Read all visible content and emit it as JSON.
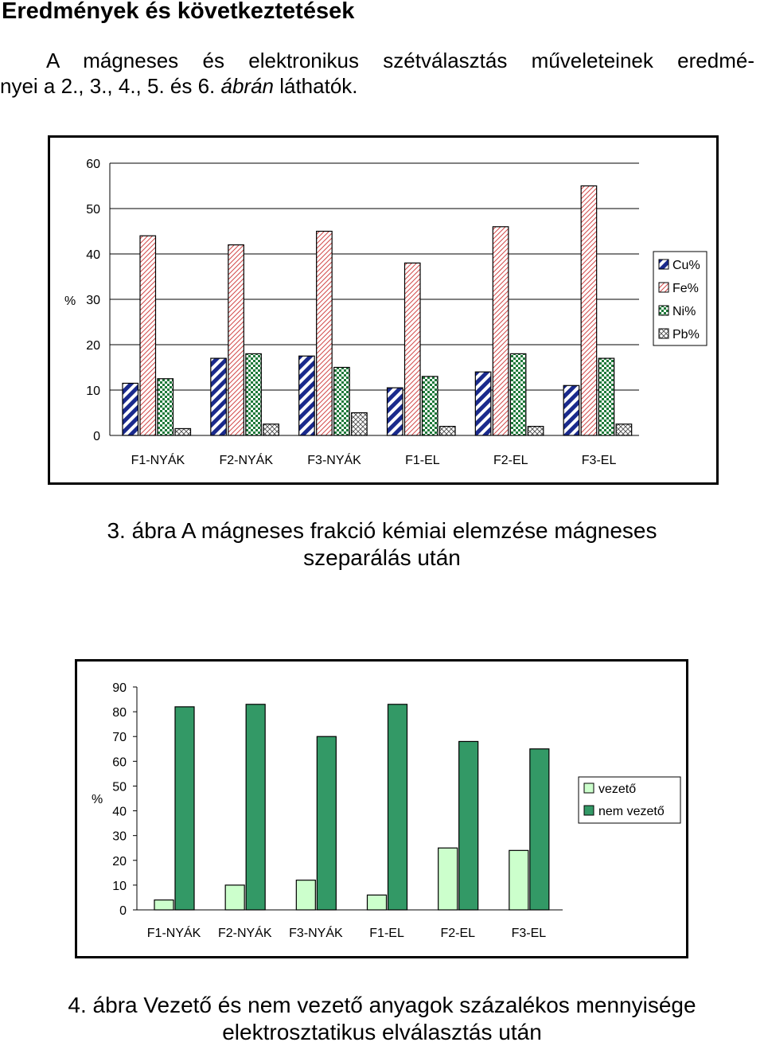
{
  "page": {
    "heading": "Eredmények és következtetések",
    "paragraph_line1": "A mágneses és elektronikus szétválasztás műveleteinek eredmé-",
    "paragraph_line2_before": "nyei a 2., 3., 4., 5. és 6. ",
    "paragraph_line2_italic": "ábrán",
    "paragraph_line2_after": " láthatók."
  },
  "figure3": {
    "caption_line1": "3. ábra A mágneses frakció kémiai elemzése mágneses",
    "caption_line2": "szeparálás után"
  },
  "figure4": {
    "caption_line1": "4. ábra Vezető és nem vezető anyagok százalékos mennyisége",
    "caption_line2": "elektrosztatikus elválasztás után"
  },
  "chart_data": [
    {
      "type": "bar",
      "categories": [
        "F1-NYÁK",
        "F2-NYÁK",
        "F3-NYÁK",
        "F1-EL",
        "F2-EL",
        "F3-EL"
      ],
      "series": [
        {
          "name": "Cu%",
          "values": [
            11.5,
            17,
            17.5,
            10.5,
            14,
            11
          ],
          "pattern": "diag-navy"
        },
        {
          "name": "Fe%",
          "values": [
            44,
            42,
            45,
            38,
            46,
            55
          ],
          "pattern": "red-hatch"
        },
        {
          "name": "Ni%",
          "values": [
            12.5,
            18,
            15,
            13,
            18,
            17
          ],
          "pattern": "green-dots"
        },
        {
          "name": "Pb%",
          "values": [
            1.5,
            2.5,
            5,
            2,
            2,
            2.5
          ],
          "pattern": "crosshatch"
        }
      ],
      "ylabel": "%",
      "ylim": [
        0,
        60
      ],
      "yticks": [
        0,
        10,
        20,
        30,
        40,
        50,
        60
      ],
      "grid": true,
      "legend": "right"
    },
    {
      "type": "bar",
      "categories": [
        "F1-NYÁK",
        "F2-NYÁK",
        "F3-NYÁK",
        "F1-EL",
        "F2-EL",
        "F3-EL"
      ],
      "series": [
        {
          "name": "vezető",
          "values": [
            4,
            10,
            12,
            6,
            25,
            24
          ],
          "color": "#ccffcc"
        },
        {
          "name": "nem vezető",
          "values": [
            82,
            83,
            70,
            83,
            68,
            65
          ],
          "color": "#339966"
        }
      ],
      "ylabel": "%",
      "ylim": [
        0,
        90
      ],
      "yticks": [
        0,
        10,
        20,
        30,
        40,
        50,
        60,
        70,
        80,
        90
      ],
      "grid": false,
      "legend": "right"
    }
  ]
}
